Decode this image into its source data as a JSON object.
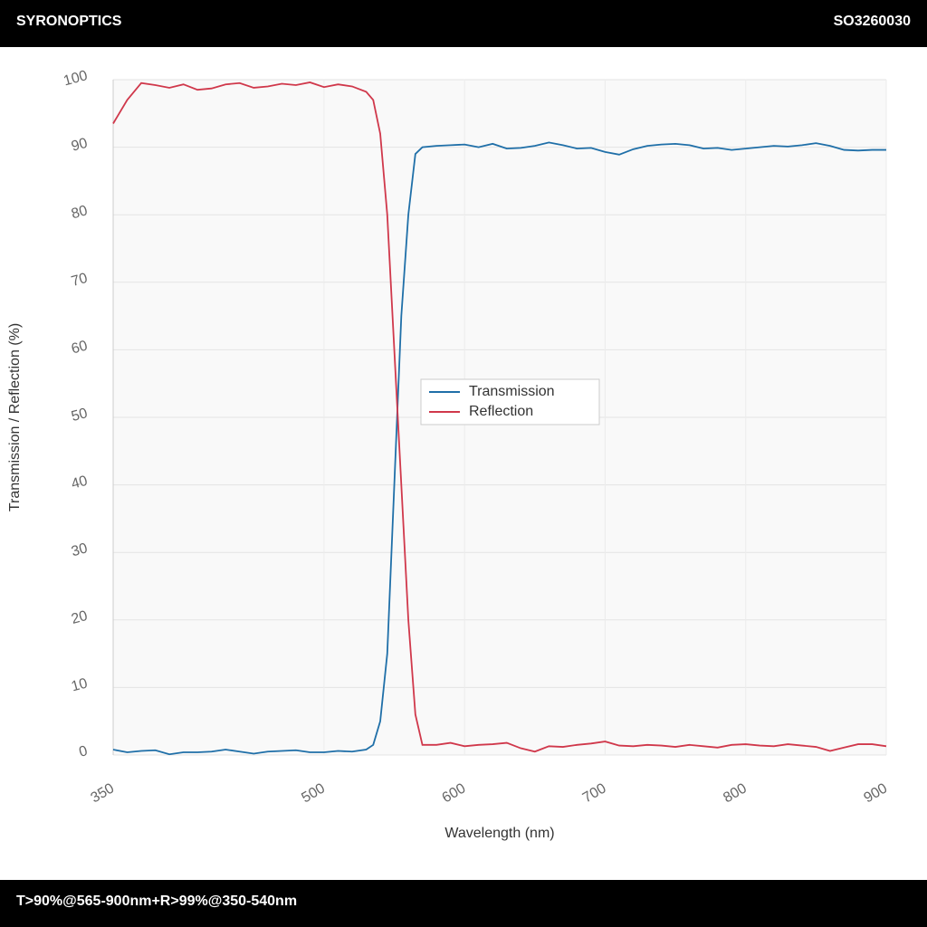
{
  "header": {
    "brand": "SYRONOPTICS",
    "code": "SO3260030"
  },
  "footer": {
    "spec": "T>90%@565-900nm+R>99%@350-540nm"
  },
  "chart_data": {
    "type": "line",
    "xlabel": "Wavelength (nm)",
    "ylabel": "Transmission / Reflection (%)",
    "x": [
      350,
      360,
      370,
      380,
      390,
      400,
      410,
      420,
      430,
      440,
      450,
      460,
      470,
      480,
      490,
      500,
      510,
      520,
      530,
      535,
      540,
      545,
      550,
      555,
      560,
      565,
      570,
      580,
      590,
      600,
      610,
      620,
      630,
      640,
      650,
      660,
      670,
      680,
      690,
      700,
      710,
      720,
      730,
      740,
      750,
      760,
      770,
      780,
      790,
      800,
      810,
      820,
      830,
      840,
      850,
      860,
      870,
      880,
      890,
      900
    ],
    "series": [
      {
        "name": "Transmission",
        "color": "#1f6fa8",
        "values": [
          0.8,
          0.4,
          0.6,
          0.7,
          0.1,
          0.4,
          0.4,
          0.5,
          0.8,
          0.5,
          0.2,
          0.5,
          0.6,
          0.7,
          0.4,
          0.4,
          0.6,
          0.5,
          0.8,
          1.5,
          5,
          15,
          40,
          65,
          80,
          89,
          90,
          90.2,
          90.3,
          90.4,
          90.0,
          90.5,
          89.8,
          89.9,
          90.2,
          90.7,
          90.3,
          89.8,
          89.9,
          89.3,
          88.9,
          89.7,
          90.2,
          90.4,
          90.5,
          90.3,
          89.8,
          89.9,
          89.6,
          89.8,
          90.0,
          90.2,
          90.1,
          90.3,
          90.6,
          90.2,
          89.6,
          89.5,
          89.6,
          89.6
        ]
      },
      {
        "name": "Reflection",
        "color": "#d0384b",
        "values": [
          93.5,
          97,
          99.5,
          99.2,
          98.8,
          99.3,
          98.5,
          98.7,
          99.3,
          99.5,
          98.8,
          99.0,
          99.4,
          99.2,
          99.6,
          98.9,
          99.3,
          99.0,
          98.2,
          97,
          92,
          80,
          60,
          40,
          20,
          6,
          1.5,
          1.5,
          1.8,
          1.3,
          1.5,
          1.6,
          1.8,
          1.0,
          0.5,
          1.3,
          1.2,
          1.5,
          1.7,
          2.0,
          1.4,
          1.3,
          1.5,
          1.4,
          1.2,
          1.5,
          1.3,
          1.1,
          1.5,
          1.6,
          1.4,
          1.3,
          1.6,
          1.4,
          1.2,
          0.6,
          1.1,
          1.6,
          1.6,
          1.3
        ]
      }
    ],
    "xlim": [
      350,
      900
    ],
    "xticks": [
      350,
      500,
      600,
      700,
      800,
      900
    ],
    "ylim": [
      0,
      100
    ],
    "yticks": [
      0,
      10,
      20,
      30,
      40,
      50,
      60,
      70,
      80,
      90,
      100
    ],
    "grid": true
  }
}
